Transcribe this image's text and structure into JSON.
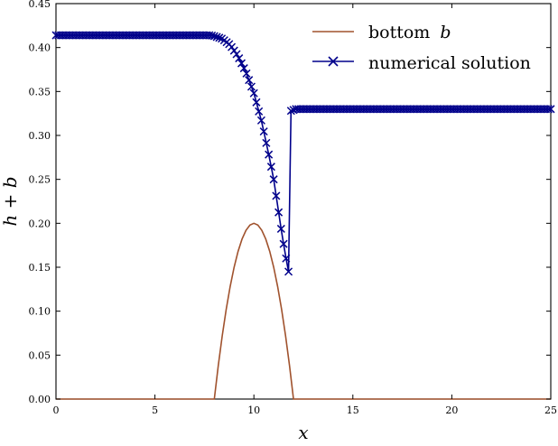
{
  "chart_data": {
    "type": "line",
    "title": "",
    "xlabel": "x",
    "ylabel": "h + b",
    "xlim": [
      0,
      25
    ],
    "ylim": [
      0,
      0.45
    ],
    "xticks": [
      0,
      5,
      10,
      15,
      20,
      25
    ],
    "xtick_labels": [
      "0",
      "5",
      "10",
      "15",
      "20",
      "25"
    ],
    "yticks": [
      0.0,
      0.05,
      0.1,
      0.15,
      0.2,
      0.25,
      0.3,
      0.35,
      0.4,
      0.45
    ],
    "ytick_labels": [
      "0.00",
      "0.05",
      "0.10",
      "0.15",
      "0.20",
      "0.25",
      "0.30",
      "0.35",
      "0.40",
      "0.45"
    ],
    "grid": false,
    "legend": {
      "position": "top-right",
      "entries": [
        {
          "label": "bottom",
          "label_math": "b"
        },
        {
          "label": "numerical solution",
          "label_math": ""
        }
      ]
    },
    "series": [
      {
        "name": "bottom b",
        "color": "#a0522d",
        "marker": "none",
        "x": [
          0,
          8,
          8.2,
          8.4,
          8.6,
          8.8,
          9.0,
          9.2,
          9.4,
          9.6,
          9.8,
          10.0,
          10.2,
          10.4,
          10.6,
          10.8,
          11.0,
          11.2,
          11.4,
          11.6,
          11.8,
          12.0,
          25
        ],
        "y": [
          0,
          0,
          0.038,
          0.072,
          0.102,
          0.128,
          0.15,
          0.168,
          0.182,
          0.192,
          0.198,
          0.2,
          0.198,
          0.192,
          0.182,
          0.168,
          0.15,
          0.128,
          0.102,
          0.072,
          0.038,
          0,
          0
        ]
      },
      {
        "name": "numerical solution",
        "color": "#00008b",
        "marker": "x",
        "x_start": 0,
        "x_end": 25,
        "dx": 0.125,
        "profile": [
          [
            0,
            0.414
          ],
          [
            7.8,
            0.414
          ],
          [
            8.0,
            0.413
          ],
          [
            8.4,
            0.41
          ],
          [
            8.8,
            0.403
          ],
          [
            9.2,
            0.39
          ],
          [
            9.6,
            0.372
          ],
          [
            10.0,
            0.348
          ],
          [
            10.4,
            0.315
          ],
          [
            10.8,
            0.273
          ],
          [
            11.0,
            0.25
          ],
          [
            11.2,
            0.22
          ],
          [
            11.4,
            0.19
          ],
          [
            11.6,
            0.163
          ],
          [
            11.75,
            0.145
          ],
          [
            11.875,
            0.328
          ],
          [
            12.125,
            0.33
          ],
          [
            25,
            0.33
          ]
        ]
      }
    ]
  }
}
